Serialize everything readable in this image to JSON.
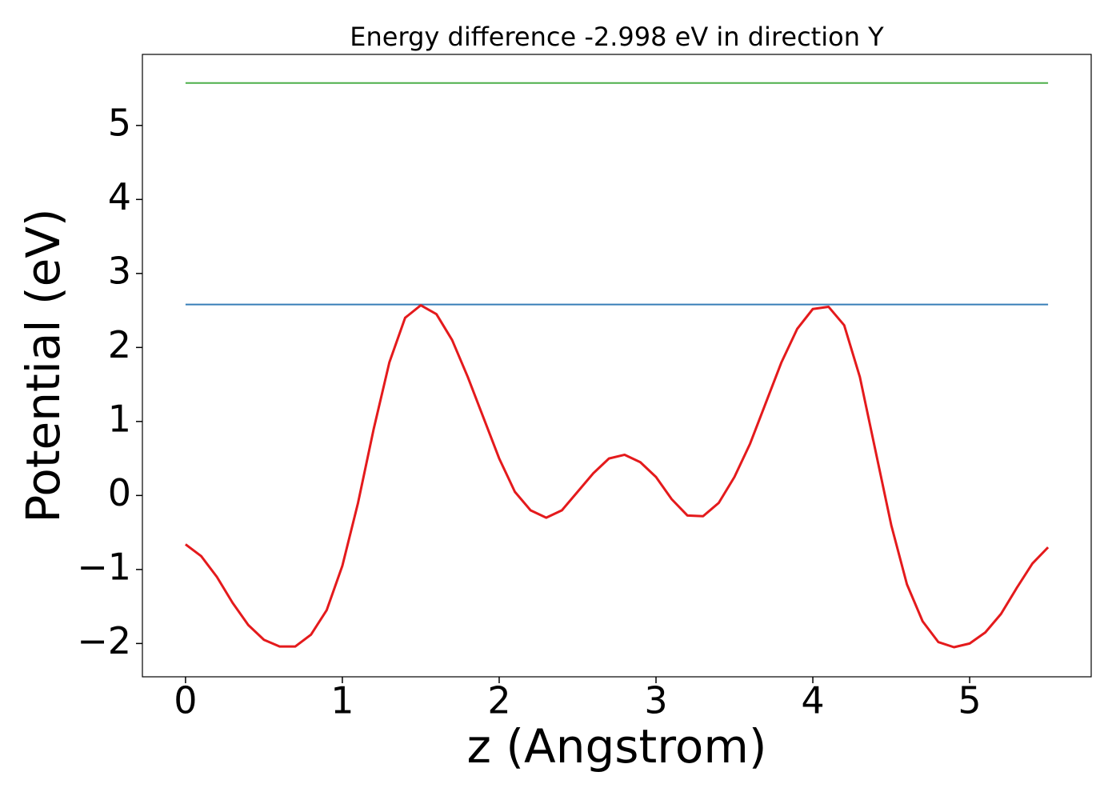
{
  "chart_data": {
    "type": "line",
    "title": "Energy difference -2.998 eV in direction Y",
    "x_label": "z (Angstrom)",
    "y_label": "Potential (eV)",
    "xlim": [
      -0.275,
      5.775
    ],
    "ylim": [
      -2.45,
      5.96
    ],
    "xticks": [
      0,
      1,
      2,
      3,
      4,
      5
    ],
    "yticks": [
      {
        "value": -2,
        "label": "−2"
      },
      {
        "value": -1,
        "label": "−1"
      },
      0,
      1,
      2,
      3,
      4,
      5
    ],
    "series": [
      {
        "color": "#4daf4a",
        "x": [
          0,
          5.5
        ],
        "values": [
          5.574,
          5.574
        ]
      },
      {
        "color": "#377eb8",
        "x": [
          0,
          5.5
        ],
        "values": [
          2.58,
          2.58
        ]
      },
      {
        "color": "#e41a1c",
        "x": [
          0,
          0.1,
          0.2,
          0.3,
          0.4,
          0.5,
          0.6,
          0.7,
          0.8,
          0.9,
          1.0,
          1.1,
          1.2,
          1.3,
          1.4,
          1.5,
          1.6,
          1.7,
          1.8,
          1.9,
          2.0,
          2.1,
          2.2,
          2.3,
          2.4,
          2.5,
          2.6,
          2.7,
          2.8,
          2.9,
          3.0,
          3.1,
          3.2,
          3.3,
          3.4,
          3.5,
          3.6,
          3.7,
          3.8,
          3.9,
          4.0,
          4.1,
          4.2,
          4.3,
          4.4,
          4.5,
          4.6,
          4.7,
          4.8,
          4.9,
          5.0,
          5.1,
          5.2,
          5.3,
          5.4,
          5.5
        ],
        "values": [
          -0.66,
          -0.82,
          -1.1,
          -1.45,
          -1.75,
          -1.95,
          -2.04,
          -2.04,
          -1.88,
          -1.55,
          -0.95,
          -0.1,
          0.9,
          1.8,
          2.4,
          2.57,
          2.45,
          2.1,
          1.6,
          1.05,
          0.5,
          0.05,
          -0.2,
          -0.3,
          -0.2,
          0.05,
          0.3,
          0.5,
          0.55,
          0.45,
          0.25,
          -0.05,
          -0.27,
          -0.28,
          -0.1,
          0.25,
          0.7,
          1.25,
          1.8,
          2.25,
          2.52,
          2.55,
          2.3,
          1.6,
          0.6,
          -0.4,
          -1.2,
          -1.7,
          -1.98,
          -2.05,
          -2.0,
          -1.85,
          -1.6,
          -1.25,
          -0.92,
          -0.7
        ]
      }
    ]
  }
}
